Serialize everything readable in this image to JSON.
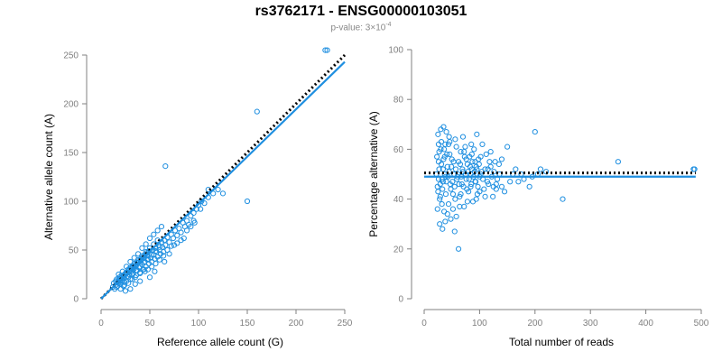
{
  "header": {
    "title": "rs3762171 - ENSG00000103051",
    "subtitle_prefix": "p-value: 3×10",
    "subtitle_exponent": "-4"
  },
  "colors": {
    "points": "#1f8fe0",
    "fit": "#1f8fe0",
    "reference": "#000000",
    "axis": "#808080"
  },
  "chart_data": [
    {
      "type": "scatter",
      "xlabel": "Reference allele count (G)",
      "ylabel": "Alternative allele count (A)",
      "xlim": [
        0,
        250
      ],
      "ylim": [
        0,
        250
      ],
      "xticks": [
        0,
        50,
        100,
        150,
        200,
        250
      ],
      "yticks": [
        0,
        50,
        100,
        150,
        200,
        250
      ],
      "lines": [
        {
          "style": "dotted",
          "color": "#000000",
          "from": [
            0,
            0
          ],
          "to": [
            250,
            250
          ]
        },
        {
          "style": "solid",
          "color": "#1f8fe0",
          "from": [
            0,
            0
          ],
          "to": [
            250,
            243
          ]
        }
      ],
      "points": [
        [
          12,
          12
        ],
        [
          14,
          10
        ],
        [
          15,
          18
        ],
        [
          16,
          20
        ],
        [
          17,
          13
        ],
        [
          18,
          16
        ],
        [
          19,
          22
        ],
        [
          20,
          15
        ],
        [
          21,
          24
        ],
        [
          22,
          19
        ],
        [
          23,
          13
        ],
        [
          24,
          21
        ],
        [
          25,
          26
        ],
        [
          26,
          18
        ],
        [
          27,
          23
        ],
        [
          28,
          30
        ],
        [
          29,
          25
        ],
        [
          30,
          20
        ],
        [
          31,
          28
        ],
        [
          32,
          33
        ],
        [
          33,
          26
        ],
        [
          34,
          31
        ],
        [
          35,
          22
        ],
        [
          36,
          34
        ],
        [
          37,
          29
        ],
        [
          38,
          37
        ],
        [
          39,
          32
        ],
        [
          40,
          27
        ],
        [
          41,
          39
        ],
        [
          42,
          35
        ],
        [
          43,
          30
        ],
        [
          44,
          42
        ],
        [
          45,
          38
        ],
        [
          46,
          33
        ],
        [
          47,
          44
        ],
        [
          48,
          40
        ],
        [
          49,
          36
        ],
        [
          50,
          47
        ],
        [
          51,
          42
        ],
        [
          52,
          38
        ],
        [
          53,
          50
        ],
        [
          54,
          45
        ],
        [
          55,
          41
        ],
        [
          56,
          52
        ],
        [
          57,
          48
        ],
        [
          58,
          43
        ],
        [
          59,
          55
        ],
        [
          60,
          50
        ],
        [
          61,
          46
        ],
        [
          62,
          58
        ],
        [
          63,
          53
        ],
        [
          64,
          48
        ],
        [
          65,
          60
        ],
        [
          66,
          55
        ],
        [
          68,
          63
        ],
        [
          70,
          58
        ],
        [
          72,
          66
        ],
        [
          74,
          62
        ],
        [
          76,
          70
        ],
        [
          78,
          65
        ],
        [
          80,
          72
        ],
        [
          82,
          68
        ],
        [
          84,
          78
        ],
        [
          86,
          74
        ],
        [
          88,
          80
        ],
        [
          90,
          76
        ],
        [
          92,
          85
        ],
        [
          95,
          88
        ],
        [
          98,
          92
        ],
        [
          100,
          96
        ],
        [
          103,
          100
        ],
        [
          106,
          98
        ],
        [
          110,
          104
        ],
        [
          115,
          108
        ],
        [
          120,
          112
        ],
        [
          18,
          25
        ],
        [
          22,
          28
        ],
        [
          26,
          33
        ],
        [
          30,
          38
        ],
        [
          34,
          42
        ],
        [
          38,
          46
        ],
        [
          42,
          52
        ],
        [
          46,
          56
        ],
        [
          50,
          62
        ],
        [
          54,
          66
        ],
        [
          58,
          70
        ],
        [
          62,
          74
        ],
        [
          20,
          10
        ],
        [
          24,
          14
        ],
        [
          28,
          16
        ],
        [
          32,
          20
        ],
        [
          36,
          24
        ],
        [
          40,
          26
        ],
        [
          44,
          30
        ],
        [
          48,
          30
        ],
        [
          52,
          33
        ],
        [
          56,
          36
        ],
        [
          60,
          40
        ],
        [
          64,
          44
        ],
        [
          15,
          14
        ],
        [
          17,
          17
        ],
        [
          19,
          19
        ],
        [
          21,
          21
        ],
        [
          23,
          23
        ],
        [
          25,
          25
        ],
        [
          27,
          27
        ],
        [
          29,
          29
        ],
        [
          31,
          31
        ],
        [
          33,
          33
        ],
        [
          35,
          35
        ],
        [
          37,
          37
        ],
        [
          39,
          39
        ],
        [
          41,
          41
        ],
        [
          43,
          43
        ],
        [
          45,
          45
        ],
        [
          47,
          47
        ],
        [
          49,
          49
        ],
        [
          13,
          16
        ],
        [
          16,
          12
        ],
        [
          18,
          20
        ],
        [
          20,
          18
        ],
        [
          22,
          22
        ],
        [
          24,
          17
        ],
        [
          26,
          27
        ],
        [
          28,
          22
        ],
        [
          30,
          32
        ],
        [
          32,
          25
        ],
        [
          34,
          36
        ],
        [
          36,
          29
        ],
        [
          38,
          40
        ],
        [
          40,
          33
        ],
        [
          42,
          44
        ],
        [
          44,
          37
        ],
        [
          46,
          48
        ],
        [
          48,
          41
        ],
        [
          50,
          52
        ],
        [
          52,
          45
        ],
        [
          54,
          56
        ],
        [
          56,
          49
        ],
        [
          58,
          60
        ],
        [
          60,
          53
        ],
        [
          66,
          136
        ],
        [
          150,
          100
        ],
        [
          160,
          192
        ],
        [
          230,
          255
        ],
        [
          232,
          255
        ],
        [
          125,
          108
        ],
        [
          110,
          112
        ],
        [
          102,
          92
        ],
        [
          95,
          80
        ],
        [
          85,
          62
        ],
        [
          75,
          55
        ],
        [
          70,
          46
        ],
        [
          45,
          28
        ],
        [
          35,
          15
        ],
        [
          25,
          8
        ],
        [
          30,
          10
        ],
        [
          40,
          18
        ],
        [
          50,
          22
        ],
        [
          55,
          28
        ],
        [
          65,
          38
        ],
        [
          68,
          50
        ],
        [
          72,
          54
        ],
        [
          78,
          57
        ],
        [
          82,
          60
        ],
        [
          88,
          70
        ],
        [
          92,
          74
        ],
        [
          96,
          78
        ]
      ]
    },
    {
      "type": "scatter",
      "xlabel": "Total number of reads",
      "ylabel": "Percentage alternative (A)",
      "xlim": [
        0,
        500
      ],
      "ylim": [
        0,
        100
      ],
      "xticks": [
        0,
        100,
        200,
        300,
        400,
        500
      ],
      "yticks": [
        0,
        20,
        40,
        60,
        80,
        100
      ],
      "lines": [
        {
          "style": "dotted",
          "color": "#000000",
          "from": [
            0,
            50.5
          ],
          "to": [
            490,
            50.5
          ]
        },
        {
          "style": "solid",
          "color": "#1f8fe0",
          "from": [
            0,
            49
          ],
          "to": [
            490,
            49
          ]
        }
      ],
      "points": [
        [
          22,
          50
        ],
        [
          24,
          45
        ],
        [
          26,
          55
        ],
        [
          28,
          40
        ],
        [
          30,
          60
        ],
        [
          32,
          48
        ],
        [
          34,
          52
        ],
        [
          36,
          35
        ],
        [
          38,
          62
        ],
        [
          40,
          47
        ],
        [
          42,
          53
        ],
        [
          44,
          38
        ],
        [
          46,
          58
        ],
        [
          48,
          44
        ],
        [
          50,
          56
        ],
        [
          52,
          42
        ],
        [
          54,
          50
        ],
        [
          56,
          64
        ],
        [
          58,
          33
        ],
        [
          60,
          49
        ],
        [
          62,
          55
        ],
        [
          64,
          41
        ],
        [
          66,
          59
        ],
        [
          68,
          46
        ],
        [
          70,
          51
        ],
        [
          72,
          37
        ],
        [
          74,
          61
        ],
        [
          76,
          48
        ],
        [
          78,
          54
        ],
        [
          80,
          43
        ],
        [
          82,
          57
        ],
        [
          84,
          45
        ],
        [
          86,
          52
        ],
        [
          88,
          39
        ],
        [
          90,
          60
        ],
        [
          92,
          47
        ],
        [
          94,
          53
        ],
        [
          96,
          42
        ],
        [
          98,
          56
        ],
        [
          100,
          49
        ],
        [
          104,
          51
        ],
        [
          108,
          44
        ],
        [
          112,
          58
        ],
        [
          116,
          46
        ],
        [
          120,
          53
        ],
        [
          124,
          41
        ],
        [
          128,
          55
        ],
        [
          132,
          48
        ],
        [
          136,
          50
        ],
        [
          140,
          45
        ],
        [
          25,
          66
        ],
        [
          30,
          68
        ],
        [
          35,
          69
        ],
        [
          40,
          67
        ],
        [
          45,
          65
        ],
        [
          28,
          30
        ],
        [
          33,
          28
        ],
        [
          38,
          31
        ],
        [
          55,
          27
        ],
        [
          62,
          20
        ],
        [
          70,
          65
        ],
        [
          85,
          62
        ],
        [
          95,
          66
        ],
        [
          105,
          62
        ],
        [
          150,
          61
        ],
        [
          200,
          67
        ],
        [
          210,
          52
        ],
        [
          250,
          40
        ],
        [
          350,
          55
        ],
        [
          486,
          52
        ],
        [
          488,
          52
        ],
        [
          180,
          48
        ],
        [
          190,
          45
        ],
        [
          160,
          50
        ],
        [
          170,
          47
        ],
        [
          145,
          43
        ],
        [
          26,
          48
        ],
        [
          27,
          52
        ],
        [
          29,
          46
        ],
        [
          31,
          54
        ],
        [
          33,
          44
        ],
        [
          35,
          56
        ],
        [
          37,
          50
        ],
        [
          39,
          42
        ],
        [
          41,
          58
        ],
        [
          43,
          49
        ],
        [
          45,
          51
        ],
        [
          47,
          46
        ],
        [
          49,
          53
        ],
        [
          51,
          47
        ],
        [
          53,
          55
        ],
        [
          55,
          45
        ],
        [
          57,
          52
        ],
        [
          59,
          48
        ],
        [
          61,
          50
        ],
        [
          63,
          46
        ],
        [
          65,
          54
        ],
        [
          67,
          49
        ],
        [
          69,
          52
        ],
        [
          71,
          45
        ],
        [
          73,
          57
        ],
        [
          75,
          50
        ],
        [
          77,
          44
        ],
        [
          79,
          51
        ],
        [
          81,
          48
        ],
        [
          83,
          53
        ],
        [
          85,
          46
        ],
        [
          87,
          55
        ],
        [
          89,
          49
        ],
        [
          91,
          51
        ],
        [
          93,
          47
        ],
        [
          95,
          52
        ],
        [
          97,
          45
        ],
        [
          99,
          54
        ],
        [
          102,
          50
        ],
        [
          106,
          48
        ],
        [
          110,
          52
        ],
        [
          114,
          47
        ],
        [
          118,
          55
        ],
        [
          122,
          49
        ],
        [
          126,
          51
        ],
        [
          130,
          46
        ],
        [
          24,
          36
        ],
        [
          26,
          62
        ],
        [
          32,
          38
        ],
        [
          36,
          60
        ],
        [
          42,
          34
        ],
        [
          46,
          63
        ],
        [
          52,
          36
        ],
        [
          58,
          61
        ],
        [
          64,
          37
        ],
        [
          72,
          59
        ],
        [
          78,
          39
        ],
        [
          86,
          58
        ],
        [
          94,
          40
        ],
        [
          102,
          57
        ],
        [
          110,
          41
        ],
        [
          120,
          59
        ],
        [
          130,
          44
        ],
        [
          140,
          56
        ],
        [
          155,
          47
        ],
        [
          165,
          52
        ],
        [
          175,
          50
        ],
        [
          195,
          49
        ],
        [
          205,
          50
        ],
        [
          220,
          51
        ],
        [
          23,
          57
        ],
        [
          25,
          43
        ],
        [
          27,
          59
        ],
        [
          29,
          41
        ],
        [
          31,
          63
        ],
        [
          34,
          47
        ],
        [
          37,
          57
        ],
        [
          39,
          49
        ],
        [
          44,
          62
        ],
        [
          48,
          32
        ],
        [
          56,
          40
        ],
        [
          66,
          42
        ],
        [
          76,
          56
        ],
        [
          84,
          50
        ],
        [
          92,
          55
        ],
        [
          100,
          43
        ],
        [
          115,
          52
        ],
        [
          125,
          45
        ],
        [
          135,
          54
        ]
      ]
    }
  ]
}
